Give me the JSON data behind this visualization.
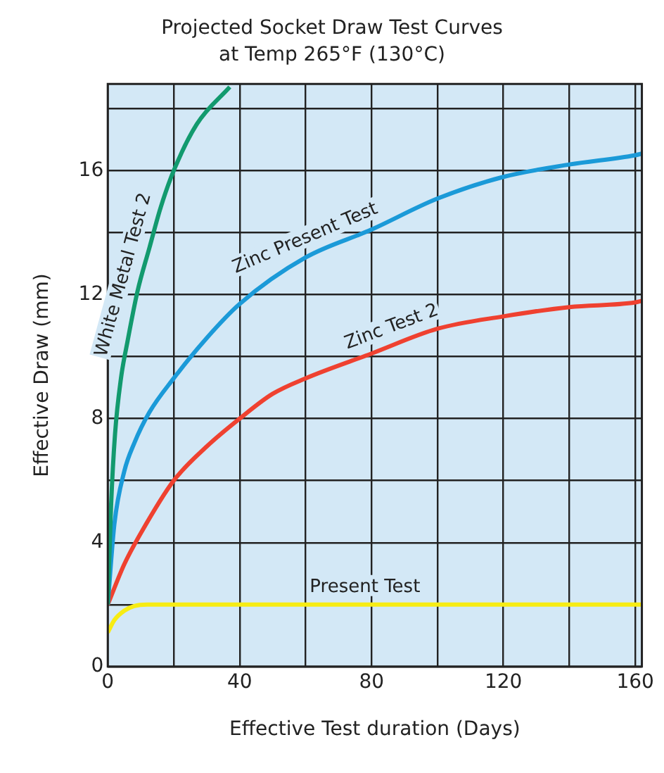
{
  "chart_data": {
    "type": "line",
    "title": "Projected Socket Draw Test Curves",
    "subtitle": "at Temp 265°F (130°C)",
    "xlabel": "Effective Test duration (Days)",
    "ylabel": "Effective Draw (mm)",
    "xlim": [
      0,
      162
    ],
    "ylim": [
      0,
      18.8
    ],
    "xticks": [
      0,
      {
        "value": 20,
        "label": null
      },
      40,
      {
        "value": 60,
        "label": null
      },
      80,
      {
        "value": 100,
        "label": null
      },
      120,
      {
        "value": 140,
        "label": null
      },
      160
    ],
    "yticks": [
      0,
      {
        "value": 2,
        "label": null
      },
      4,
      {
        "value": 6,
        "label": null
      },
      8,
      {
        "value": 10,
        "label": null
      },
      12,
      {
        "value": 14,
        "label": null
      },
      16,
      {
        "value": 18,
        "label": null
      }
    ],
    "grid": true,
    "legend": false,
    "marker": "none",
    "line_style": "solid",
    "series": [
      {
        "name": "White Metal Test 2",
        "color": "#129a6e",
        "x": [
          0,
          1,
          2.2,
          4,
          6,
          9,
          12.6,
          16,
          20,
          27,
          37
        ],
        "values": [
          2,
          5.2,
          7.5,
          9.3,
          10.5,
          12.1,
          13.5,
          14.8,
          16.0,
          17.5,
          18.7
        ]
      },
      {
        "name": "Zinc Present Test",
        "color": "#1b9ad8",
        "x": [
          0,
          2,
          5,
          8,
          12.6,
          20,
          30,
          40,
          60,
          80,
          100,
          120,
          140,
          160,
          162
        ],
        "values": [
          2,
          4.6,
          6.3,
          7.2,
          8.2,
          9.3,
          10.6,
          11.7,
          13.2,
          14.1,
          15.1,
          15.8,
          16.2,
          16.5,
          16.55
        ]
      },
      {
        "name": "Zinc Test 2",
        "color": "#ef4130",
        "x": [
          0,
          5,
          10,
          20,
          30,
          40,
          50,
          60,
          80,
          100,
          120,
          140,
          160,
          162
        ],
        "values": [
          2,
          3.3,
          4.3,
          6.0,
          7.1,
          8.0,
          8.8,
          9.3,
          10.1,
          10.9,
          11.3,
          11.6,
          11.75,
          11.8
        ]
      },
      {
        "name": "Present Test",
        "color": "#f7ec13",
        "x": [
          0,
          2,
          5,
          8,
          12,
          162
        ],
        "values": [
          1.1,
          1.5,
          1.8,
          1.95,
          2,
          2
        ]
      }
    ]
  }
}
